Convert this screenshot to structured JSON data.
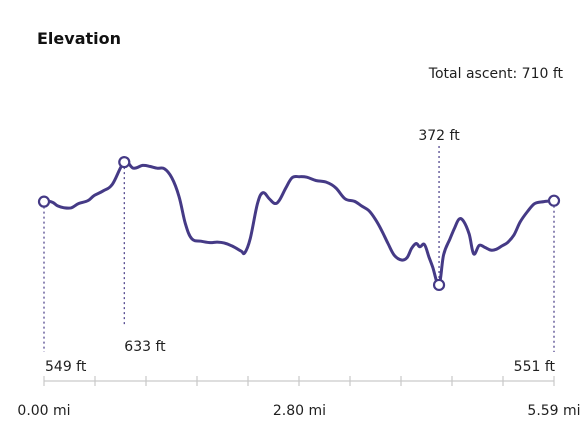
{
  "header": {
    "title": "Elevation",
    "total_ascent": "Total ascent: 710 ft"
  },
  "chart_data": {
    "type": "line",
    "title": "Elevation",
    "xlabel": "",
    "ylabel": "",
    "xlim": [
      0,
      5.59
    ],
    "ylim": [
      340,
      680
    ],
    "x_tick_labels": [
      {
        "x": 0.0,
        "label": "0.00 mi"
      },
      {
        "x": 2.8,
        "label": "2.80 mi"
      },
      {
        "x": 5.59,
        "label": "5.59 mi"
      }
    ],
    "color": "#453a86",
    "series": [
      {
        "values": [
          [
            0.0,
            549
          ],
          [
            0.05,
            550
          ],
          [
            0.1,
            547
          ],
          [
            0.15,
            540
          ],
          [
            0.22,
            536
          ],
          [
            0.3,
            536
          ],
          [
            0.38,
            545
          ],
          [
            0.48,
            551
          ],
          [
            0.55,
            562
          ],
          [
            0.65,
            572
          ],
          [
            0.75,
            586
          ],
          [
            0.88,
            633
          ],
          [
            0.98,
            620
          ],
          [
            1.08,
            626
          ],
          [
            1.16,
            624
          ],
          [
            1.24,
            620
          ],
          [
            1.32,
            619
          ],
          [
            1.4,
            600
          ],
          [
            1.48,
            560
          ],
          [
            1.55,
            502
          ],
          [
            1.62,
            470
          ],
          [
            1.72,
            465
          ],
          [
            1.82,
            462
          ],
          [
            1.9,
            463
          ],
          [
            1.98,
            461
          ],
          [
            2.06,
            455
          ],
          [
            2.16,
            444
          ],
          [
            2.2,
            440
          ],
          [
            2.26,
            470
          ],
          [
            2.34,
            545
          ],
          [
            2.4,
            568
          ],
          [
            2.47,
            555
          ],
          [
            2.53,
            545
          ],
          [
            2.58,
            552
          ],
          [
            2.65,
            578
          ],
          [
            2.72,
            600
          ],
          [
            2.8,
            602
          ],
          [
            2.88,
            601
          ],
          [
            2.98,
            594
          ],
          [
            3.1,
            590
          ],
          [
            3.2,
            578
          ],
          [
            3.3,
            555
          ],
          [
            3.4,
            550
          ],
          [
            3.48,
            540
          ],
          [
            3.56,
            530
          ],
          [
            3.63,
            512
          ],
          [
            3.7,
            488
          ],
          [
            3.77,
            460
          ],
          [
            3.84,
            435
          ],
          [
            3.92,
            425
          ],
          [
            3.98,
            430
          ],
          [
            4.03,
            450
          ],
          [
            4.08,
            460
          ],
          [
            4.12,
            453
          ],
          [
            4.17,
            458
          ],
          [
            4.22,
            431
          ],
          [
            4.26,
            410
          ],
          [
            4.33,
            372
          ],
          [
            4.38,
            436
          ],
          [
            4.45,
            470
          ],
          [
            4.5,
            493
          ],
          [
            4.55,
            512
          ],
          [
            4.6,
            507
          ],
          [
            4.66,
            480
          ],
          [
            4.71,
            438
          ],
          [
            4.77,
            456
          ],
          [
            4.83,
            452
          ],
          [
            4.9,
            446
          ],
          [
            4.96,
            448
          ],
          [
            5.02,
            455
          ],
          [
            5.08,
            462
          ],
          [
            5.15,
            478
          ],
          [
            5.22,
            506
          ],
          [
            5.3,
            528
          ],
          [
            5.38,
            545
          ],
          [
            5.48,
            549
          ],
          [
            5.59,
            551
          ]
        ]
      }
    ],
    "annotations": [
      {
        "x": 0.0,
        "y": 549,
        "label": "549 ft",
        "kind": "start"
      },
      {
        "x": 0.88,
        "y": 633,
        "label": "633 ft",
        "kind": "high"
      },
      {
        "x": 4.33,
        "y": 372,
        "label": "372 ft",
        "kind": "low"
      },
      {
        "x": 5.59,
        "y": 551,
        "label": "551 ft",
        "kind": "end"
      }
    ],
    "grid": false,
    "legend": "none"
  }
}
